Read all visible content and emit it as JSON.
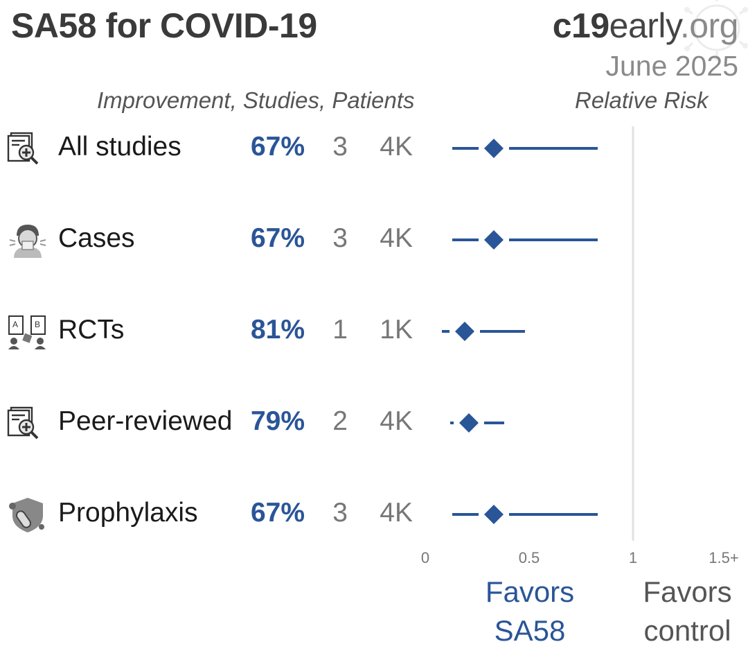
{
  "header": {
    "title": "SA58 for COVID-19",
    "brand_part1": "c19",
    "brand_part2": "early",
    "brand_part3": ".org",
    "date": "June 2025"
  },
  "columns": {
    "left_header": "Improvement, Studies, Patients",
    "right_header": "Relative Risk"
  },
  "rows": [
    {
      "label": "All studies",
      "improvement": "67%",
      "studies": "3",
      "patients": "4K",
      "icon": "document-magnify-plus-icon"
    },
    {
      "label": "Cases",
      "improvement": "67%",
      "studies": "3",
      "patients": "4K",
      "icon": "sneezing-person-icon"
    },
    {
      "label": "RCTs",
      "improvement": "81%",
      "studies": "1",
      "patients": "1K",
      "icon": "ab-randomized-trial-icon"
    },
    {
      "label": "Peer-reviewed",
      "improvement": "79%",
      "studies": "2",
      "patients": "4K",
      "icon": "document-magnify-plus-icon"
    },
    {
      "label": "Prophylaxis",
      "improvement": "67%",
      "studies": "3",
      "patients": "4K",
      "icon": "shield-pill-icon"
    }
  ],
  "favors": {
    "left_line1": "Favors",
    "left_line2": "SA58",
    "right_line1": "Favors",
    "right_line2": "control"
  },
  "colors": {
    "accent": "#2a5597",
    "reference_line": "#e2e2e2"
  },
  "chart_data": {
    "type": "forest",
    "xlabel": "Relative Risk",
    "xlim": [
      0,
      1.5
    ],
    "ticks": [
      {
        "value": 0,
        "label": "0"
      },
      {
        "value": 0.5,
        "label": "0.5"
      },
      {
        "value": 1,
        "label": "1"
      },
      {
        "value": 1.5,
        "label": "1.5+"
      }
    ],
    "reference": 1,
    "series": [
      {
        "name": "All studies",
        "rr": 0.33,
        "lo": 0.13,
        "hi": 0.83
      },
      {
        "name": "Cases",
        "rr": 0.33,
        "lo": 0.13,
        "hi": 0.83
      },
      {
        "name": "RCTs",
        "rr": 0.19,
        "lo": 0.08,
        "hi": 0.48
      },
      {
        "name": "Peer-reviewed",
        "rr": 0.21,
        "lo": 0.12,
        "hi": 0.38
      },
      {
        "name": "Prophylaxis",
        "rr": 0.33,
        "lo": 0.13,
        "hi": 0.83
      }
    ]
  }
}
